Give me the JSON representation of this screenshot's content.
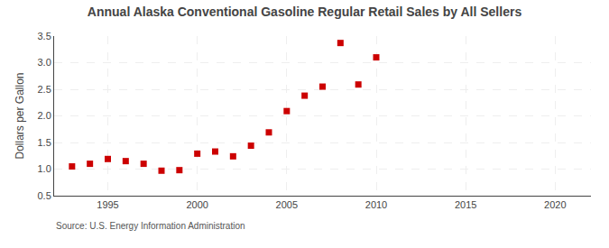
{
  "chart_data": {
    "type": "scatter",
    "title": "Annual Alaska Conventional Gasoline Regular Retail Sales by All Sellers",
    "ylabel": "Dollars per Gallon",
    "annotation": "Source: U.S. Energy Information Administration",
    "x": [
      1993,
      1994,
      1995,
      1996,
      1997,
      1998,
      1999,
      2000,
      2001,
      2002,
      2003,
      2004,
      2005,
      2006,
      2007,
      2008,
      2009,
      2010
    ],
    "values": [
      1.05,
      1.1,
      1.19,
      1.15,
      1.1,
      0.97,
      0.98,
      1.29,
      1.33,
      1.24,
      1.44,
      1.69,
      2.09,
      2.38,
      2.55,
      3.37,
      2.59,
      3.1
    ],
    "color": "#cc0000",
    "marker": "square",
    "xlim": [
      1992,
      2022
    ],
    "ylim": [
      0.5,
      3.5
    ],
    "xticks": [
      1995,
      2000,
      2005,
      2010,
      2015,
      2020
    ],
    "yticks": [
      0.5,
      {
        "value": 1.0,
        "label": "1.0"
      },
      1.5,
      {
        "value": 2.0,
        "label": "2.0"
      },
      2.5,
      {
        "value": 3.0,
        "label": "3.0"
      },
      3.5
    ],
    "grid": true
  }
}
